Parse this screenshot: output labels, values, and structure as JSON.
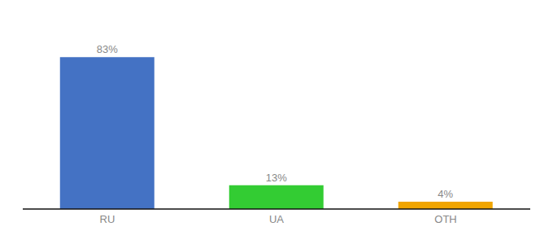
{
  "chart_data": {
    "type": "bar",
    "categories": [
      "RU",
      "UA",
      "OTH"
    ],
    "values": [
      83,
      13,
      4
    ],
    "value_labels": [
      "83%",
      "13%",
      "4%"
    ],
    "colors": [
      "#4472c4",
      "#33cc33",
      "#f0a500"
    ],
    "ylim": [
      0,
      100
    ],
    "data_labels": true,
    "tick_labels": "x"
  }
}
